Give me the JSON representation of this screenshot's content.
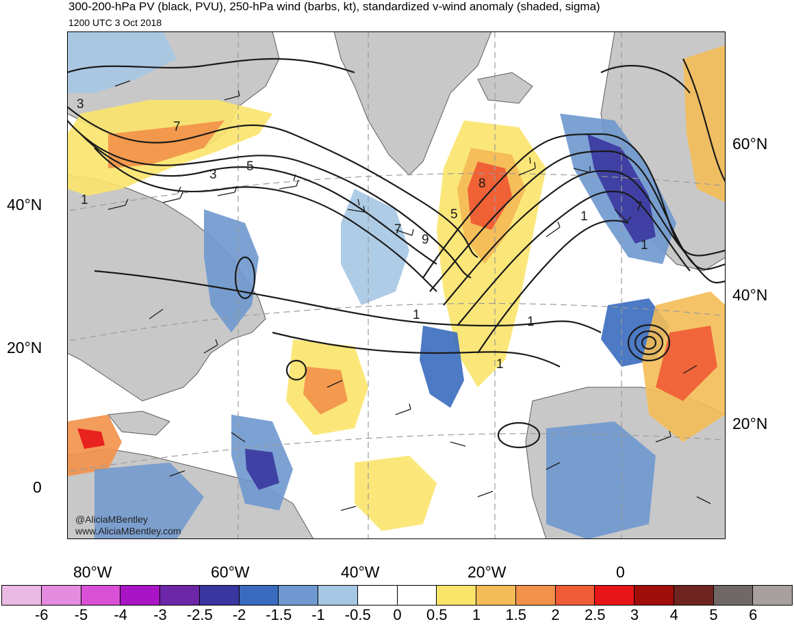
{
  "title": "300-200-hPa PV (black, PVU), 250-hPa wind (barbs, kt), standardized v-wind anomaly (shaded, sigma)",
  "subtitle": "1200 UTC 3 Oct 2018",
  "credit": {
    "handle": "@AliciaMBentley",
    "url": "www.AliciaMBentley.com"
  },
  "lat_labels_left": [
    "40°N",
    "20°N",
    "0"
  ],
  "lat_labels_right": [
    "60°N",
    "40°N",
    "20°N"
  ],
  "lon_labels": [
    "80°W",
    "60°W",
    "40°W",
    "20°W",
    "0"
  ],
  "contour_labels": [
    "3",
    "7",
    "3",
    "1",
    "5",
    "7",
    "9",
    "5",
    "8",
    "1",
    "7",
    "1",
    "1",
    "1",
    "1"
  ],
  "colorbar": {
    "colors": [
      "#eab9e4",
      "#e58be0",
      "#d950d6",
      "#a914c5",
      "#6d26a8",
      "#3a369f",
      "#3a6bbe",
      "#6e98cf",
      "#a6c7e3",
      "#ffffff",
      "#ffffff",
      "#fbe46a",
      "#f4bc57",
      "#f2914a",
      "#ef5c35",
      "#e71517",
      "#a00d0b",
      "#702420",
      "#706866",
      "#a7a09f"
    ],
    "labels": [
      "-6",
      "-5",
      "-4",
      "-3",
      "-2.5",
      "-2",
      "-1.5",
      "-1",
      "-0.5",
      "0",
      "0.5",
      "1",
      "1.5",
      "2",
      "2.5",
      "3",
      "4",
      "5",
      "6"
    ]
  }
}
